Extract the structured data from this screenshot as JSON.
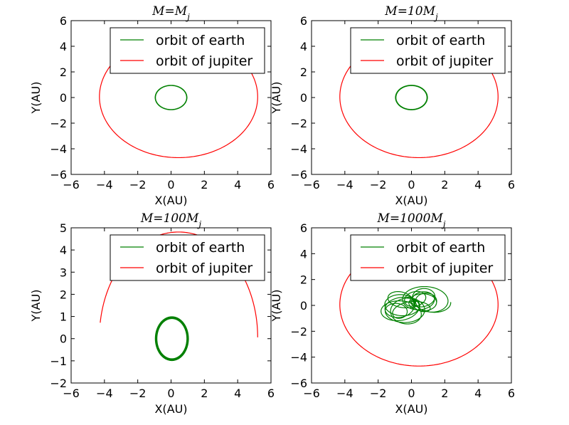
{
  "figure": {
    "background": "#ffffff"
  },
  "chart_data": [
    {
      "type": "line",
      "title": "M = M_j",
      "title_parts": {
        "base": "M=M",
        "sub": "j"
      },
      "xlabel": "X(AU)",
      "ylabel": "Y(AU)",
      "xlim": [
        -6,
        6
      ],
      "ylim": [
        -6,
        6
      ],
      "xticks": [
        -6,
        -4,
        -2,
        0,
        2,
        4,
        6
      ],
      "yticks": [
        -6,
        -4,
        -2,
        0,
        2,
        4,
        6
      ],
      "tick_labels_x": [
        "−6",
        "−4",
        "−2",
        "0",
        "2",
        "4",
        "6"
      ],
      "tick_labels_y": [
        "−6",
        "−4",
        "−2",
        "0",
        "2",
        "4",
        "6"
      ],
      "legend": {
        "placement": "top-right",
        "entries": [
          "orbit of earth",
          "orbit of jupiter"
        ]
      },
      "series": [
        {
          "name": "orbit of earth",
          "color": "#008000",
          "kind": "ellipse",
          "center": [
            0,
            0
          ],
          "rx": 0.95,
          "ry": 0.95,
          "loops": 3,
          "jitter": 0.03
        },
        {
          "name": "orbit of jupiter",
          "color": "#ff0000",
          "kind": "ellipse",
          "center": [
            0.45,
            0.06
          ],
          "rx": 4.75,
          "ry": 4.75
        }
      ]
    },
    {
      "type": "line",
      "title": "M = 10M_j",
      "title_parts": {
        "base": "M=10M",
        "sub": "j"
      },
      "xlabel": "X(AU)",
      "ylabel": "Y(AU)",
      "xlim": [
        -6,
        6
      ],
      "ylim": [
        -6,
        6
      ],
      "xticks": [
        -6,
        -4,
        -2,
        0,
        2,
        4,
        6
      ],
      "yticks": [
        -6,
        -4,
        -2,
        0,
        2,
        4,
        6
      ],
      "tick_labels_x": [
        "−6",
        "−4",
        "−2",
        "0",
        "2",
        "4",
        "6"
      ],
      "tick_labels_y": [
        "−6",
        "−4",
        "−2",
        "0",
        "2",
        "4",
        "6"
      ],
      "legend": {
        "placement": "top-right",
        "entries": [
          "orbit of earth",
          "orbit of jupiter"
        ]
      },
      "series": [
        {
          "name": "orbit of earth",
          "color": "#008000",
          "kind": "ellipse",
          "center": [
            0,
            0
          ],
          "rx": 0.95,
          "ry": 0.95,
          "loops": 4,
          "jitter": 0.04
        },
        {
          "name": "orbit of jupiter",
          "color": "#ff0000",
          "kind": "ellipse",
          "center": [
            0.45,
            0.06
          ],
          "rx": 4.75,
          "ry": 4.75
        }
      ]
    },
    {
      "type": "line",
      "title": "M = 100M_j",
      "title_parts": {
        "base": "M=100M",
        "sub": "j"
      },
      "xlabel": "X(AU)",
      "ylabel": "Y(AU)",
      "xlim": [
        -6,
        6
      ],
      "ylim": [
        -2,
        5
      ],
      "xticks": [
        -6,
        -4,
        -2,
        0,
        2,
        4,
        6
      ],
      "yticks": [
        -2,
        -1,
        0,
        1,
        2,
        3,
        4,
        5
      ],
      "tick_labels_x": [
        "−6",
        "−4",
        "−2",
        "0",
        "2",
        "4",
        "6"
      ],
      "tick_labels_y": [
        "−2",
        "−1",
        "0",
        "1",
        "2",
        "3",
        "4",
        "5"
      ],
      "legend": {
        "placement": "top-right",
        "entries": [
          "orbit of earth",
          "orbit of jupiter"
        ]
      },
      "series": [
        {
          "name": "orbit of earth",
          "color": "#008000",
          "kind": "ellipse",
          "center": [
            0.05,
            0
          ],
          "rx": 0.95,
          "ry": 0.95,
          "loops": 8,
          "jitter": 0.05,
          "width": 2.4
        },
        {
          "name": "orbit of jupiter",
          "color": "#ff0000",
          "kind": "arc",
          "center": [
            0.45,
            0.06
          ],
          "rx": 4.75,
          "ry": 4.75,
          "start_deg": 0,
          "end_deg": 172
        }
      ]
    },
    {
      "type": "line",
      "title": "M = 1000M_j",
      "title_parts": {
        "base": "M=1000M",
        "sub": "j"
      },
      "xlabel": "X(AU)",
      "ylabel": "Y(AU)",
      "xlim": [
        -6,
        6
      ],
      "ylim": [
        -6,
        6
      ],
      "xticks": [
        -6,
        -4,
        -2,
        0,
        2,
        4,
        6
      ],
      "yticks": [
        -6,
        -4,
        -2,
        0,
        2,
        4,
        6
      ],
      "tick_labels_x": [
        "−6",
        "−4",
        "−2",
        "0",
        "2",
        "4",
        "6"
      ],
      "tick_labels_y": [
        "−6",
        "−4",
        "−2",
        "0",
        "2",
        "4",
        "6"
      ],
      "legend": {
        "placement": "top-right",
        "entries": [
          "orbit of earth",
          "orbit of jupiter"
        ]
      },
      "series": [
        {
          "name": "orbit of earth",
          "color": "#008000",
          "kind": "wobble",
          "center": [
            0,
            0
          ],
          "rx": 1.0,
          "ry": 1.0,
          "loops": 14,
          "drift": 0.9
        },
        {
          "name": "orbit of jupiter",
          "color": "#ff0000",
          "kind": "ellipse",
          "center": [
            0.45,
            0.06
          ],
          "rx": 4.75,
          "ry": 4.75
        }
      ]
    }
  ]
}
